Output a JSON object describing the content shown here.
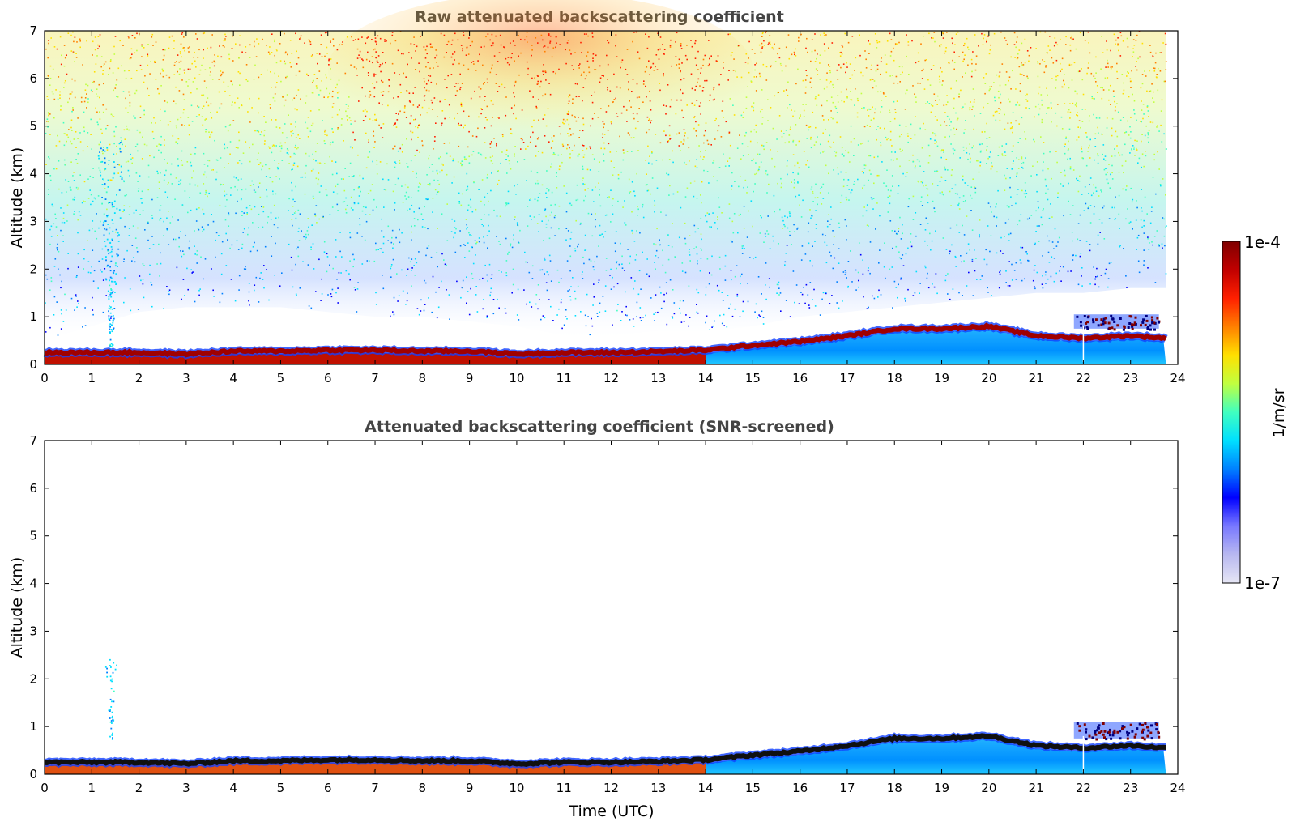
{
  "chart_data": [
    {
      "type": "heatmap",
      "title": "Raw attenuated backscattering coefficient",
      "xlabel": "",
      "ylabel": "Altitude (km)",
      "xlim": [
        0,
        24
      ],
      "ylim": [
        0,
        7
      ],
      "x_ticks": [
        "0",
        "1",
        "2",
        "3",
        "4",
        "5",
        "6",
        "7",
        "8",
        "9",
        "10",
        "11",
        "12",
        "13",
        "14",
        "15",
        "16",
        "17",
        "18",
        "19",
        "20",
        "21",
        "22",
        "23",
        "24"
      ],
      "y_ticks": [
        "0",
        "1",
        "2",
        "3",
        "4",
        "5",
        "6",
        "7"
      ],
      "data_end_time": 23.75,
      "boundary_layer_top_km": [
        [
          0,
          0.25
        ],
        [
          1,
          0.25
        ],
        [
          2,
          0.25
        ],
        [
          3,
          0.22
        ],
        [
          4,
          0.28
        ],
        [
          5,
          0.28
        ],
        [
          6,
          0.3
        ],
        [
          7,
          0.3
        ],
        [
          8,
          0.28
        ],
        [
          9,
          0.28
        ],
        [
          10,
          0.22
        ],
        [
          11,
          0.25
        ],
        [
          12,
          0.25
        ],
        [
          13,
          0.27
        ],
        [
          14,
          0.3
        ],
        [
          15,
          0.4
        ],
        [
          16,
          0.48
        ],
        [
          17,
          0.6
        ],
        [
          18,
          0.75
        ],
        [
          19,
          0.75
        ],
        [
          20,
          0.8
        ],
        [
          21,
          0.6
        ],
        [
          22,
          0.55
        ],
        [
          23,
          0.6
        ],
        [
          23.75,
          0.55
        ]
      ],
      "noise_floor_km": [
        [
          0,
          0.5
        ],
        [
          1,
          0.8
        ],
        [
          2,
          1.1
        ],
        [
          3,
          1.2
        ],
        [
          4,
          1.2
        ],
        [
          5,
          1.2
        ],
        [
          6,
          1.1
        ],
        [
          7,
          1.0
        ],
        [
          8,
          1.0
        ],
        [
          9,
          0.9
        ],
        [
          10,
          0.8
        ],
        [
          11,
          0.6
        ],
        [
          12,
          0.6
        ],
        [
          13,
          0.7
        ],
        [
          14,
          0.7
        ],
        [
          15,
          0.8
        ],
        [
          16,
          1.0
        ],
        [
          17,
          1.1
        ],
        [
          18,
          1.2
        ],
        [
          19,
          1.3
        ],
        [
          20,
          1.4
        ],
        [
          21,
          1.5
        ],
        [
          22,
          1.5
        ],
        [
          23,
          1.6
        ],
        [
          23.75,
          1.6
        ]
      ],
      "features": [
        {
          "name": "aerosol plume",
          "time": 1.4,
          "alt_bottom_km": 0.25,
          "alt_top_km": 4.7
        },
        {
          "name": "cloud layer",
          "time_start": 21.8,
          "time_end": 23.6,
          "alt_bottom_km": 0.75,
          "alt_top_km": 1.05
        }
      ]
    },
    {
      "type": "heatmap",
      "title": "Attenuated backscattering coefficient (SNR-screened)",
      "xlabel": "Time (UTC)",
      "ylabel": "Altitude (km)",
      "xlim": [
        0,
        24
      ],
      "ylim": [
        0,
        7
      ],
      "x_ticks": [
        "0",
        "1",
        "2",
        "3",
        "4",
        "5",
        "6",
        "7",
        "8",
        "9",
        "10",
        "11",
        "12",
        "13",
        "14",
        "15",
        "16",
        "17",
        "18",
        "19",
        "20",
        "21",
        "22",
        "23",
        "24"
      ],
      "y_ticks": [
        "0",
        "1",
        "2",
        "3",
        "4",
        "5",
        "6",
        "7"
      ],
      "data_end_time": 23.75,
      "boundary_layer_top_km": [
        [
          0,
          0.25
        ],
        [
          1,
          0.25
        ],
        [
          2,
          0.25
        ],
        [
          3,
          0.22
        ],
        [
          4,
          0.28
        ],
        [
          5,
          0.28
        ],
        [
          6,
          0.3
        ],
        [
          7,
          0.3
        ],
        [
          8,
          0.28
        ],
        [
          9,
          0.28
        ],
        [
          10,
          0.22
        ],
        [
          11,
          0.25
        ],
        [
          12,
          0.25
        ],
        [
          13,
          0.27
        ],
        [
          14,
          0.3
        ],
        [
          15,
          0.4
        ],
        [
          16,
          0.48
        ],
        [
          17,
          0.6
        ],
        [
          18,
          0.75
        ],
        [
          19,
          0.75
        ],
        [
          20,
          0.8
        ],
        [
          21,
          0.6
        ],
        [
          22,
          0.55
        ],
        [
          23,
          0.6
        ],
        [
          23.75,
          0.55
        ]
      ],
      "features": [
        {
          "name": "aerosol plume",
          "time": 1.4,
          "alt_bottom_km": 0.7,
          "alt_top_km": 2.45
        },
        {
          "name": "cloud layer",
          "time_start": 21.8,
          "time_end": 23.6,
          "alt_bottom_km": 0.75,
          "alt_top_km": 1.1
        }
      ]
    }
  ],
  "colorbar": {
    "min_label": "1e-7",
    "max_label": "1e-4",
    "label": "1/m/sr",
    "scale": "log",
    "colormap": "jet",
    "colors": [
      "#e6e6f5",
      "#b8b8f0",
      "#7878ff",
      "#0000ff",
      "#0080ff",
      "#00e0ff",
      "#40ffc0",
      "#c0ff40",
      "#ffe000",
      "#ff8000",
      "#ff2000",
      "#c00000",
      "#800000"
    ]
  },
  "colors": {
    "frame": "#000000",
    "title": "#444444",
    "vertical_line": "#ffffff"
  }
}
